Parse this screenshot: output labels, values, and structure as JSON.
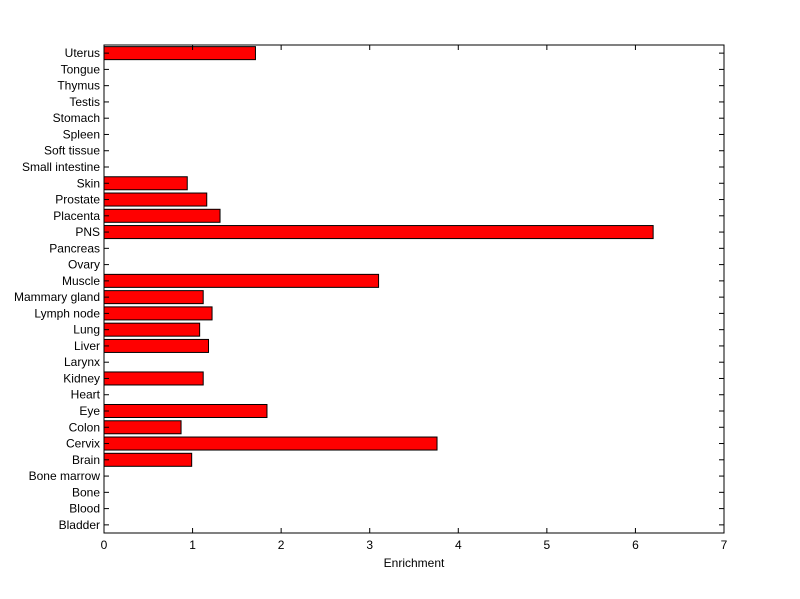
{
  "chart_data": {
    "type": "bar",
    "orientation": "horizontal",
    "title": "",
    "xlabel": "Enrichment",
    "ylabel": "",
    "xlim": [
      0,
      7
    ],
    "xticks": [
      0,
      1,
      2,
      3,
      4,
      5,
      6,
      7
    ],
    "grid": false,
    "legend": "none",
    "bar_color": "#ff0000",
    "bar_edge_color": "#000000",
    "categories": [
      "Uterus",
      "Tongue",
      "Thymus",
      "Testis",
      "Stomach",
      "Spleen",
      "Soft tissue",
      "Small intestine",
      "Skin",
      "Prostate",
      "Placenta",
      "PNS",
      "Pancreas",
      "Ovary",
      "Muscle",
      "Mammary gland",
      "Lymph node",
      "Lung",
      "Liver",
      "Larynx",
      "Kidney",
      "Heart",
      "Eye",
      "Colon",
      "Cervix",
      "Brain",
      "Bone marrow",
      "Bone",
      "Blood",
      "Bladder"
    ],
    "values": [
      1.71,
      0,
      0,
      0,
      0,
      0,
      0,
      0,
      0.94,
      1.16,
      1.31,
      6.2,
      0,
      0,
      3.1,
      1.12,
      1.22,
      1.08,
      1.18,
      0,
      1.12,
      0,
      1.84,
      0.87,
      3.76,
      0.99,
      0,
      0,
      0,
      0
    ]
  }
}
